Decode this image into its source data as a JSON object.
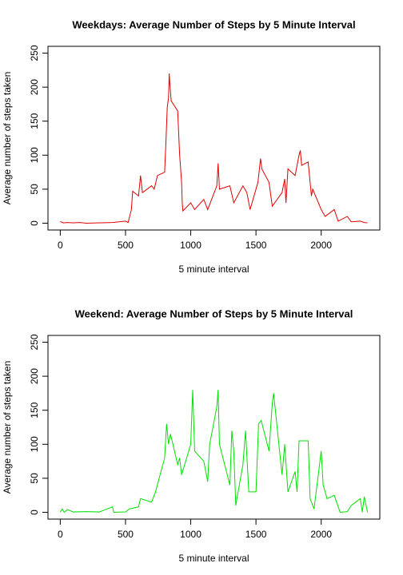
{
  "chart_data": [
    {
      "type": "line",
      "title": "Weekdays: Average Number of Steps by 5 Minute Interval",
      "x_label": "5 minute interval",
      "y_label": "Average number of steps taken",
      "color": "#e00000",
      "x": [
        0,
        25,
        50,
        100,
        150,
        200,
        300,
        400,
        450,
        500,
        520,
        545,
        555,
        600,
        615,
        630,
        700,
        720,
        745,
        800,
        810,
        820,
        830,
        835,
        840,
        850,
        900,
        915,
        930,
        935,
        940,
        1000,
        1030,
        1100,
        1130,
        1200,
        1210,
        1220,
        1300,
        1330,
        1400,
        1430,
        1455,
        1515,
        1535,
        1545,
        1600,
        1625,
        1700,
        1720,
        1730,
        1745,
        1800,
        1830,
        1840,
        1850,
        1900,
        1925,
        1935,
        2000,
        2030,
        2100,
        2130,
        2200,
        2230,
        2300,
        2330,
        2355
      ],
      "values": [
        2.3,
        0.5,
        1,
        0.5,
        1,
        0,
        0.5,
        1,
        2,
        3,
        1,
        20,
        47,
        40,
        70,
        45,
        55,
        50,
        70,
        75,
        120,
        170,
        185,
        220,
        205,
        180,
        165,
        100,
        60,
        30,
        18,
        30,
        20,
        35,
        20,
        55,
        88,
        50,
        55,
        30,
        55,
        45,
        20,
        60,
        95,
        80,
        60,
        25,
        45,
        65,
        30,
        80,
        70,
        100,
        107,
        85,
        90,
        40,
        50,
        20,
        10,
        20,
        3,
        10,
        2,
        3,
        1,
        0.5
      ],
      "xlim": [
        -94.2,
        2449.2
      ],
      "ylim": [
        -10,
        260
      ],
      "xticks": [
        0,
        500,
        1000,
        1500,
        2000
      ],
      "yticks": [
        0,
        50,
        100,
        150,
        200,
        250
      ]
    },
    {
      "type": "line",
      "title": "Weekend: Average Number of Steps by 5 Minute Interval",
      "x_label": "5 minute interval",
      "y_label": "Average number of steps taken",
      "color": "#00e000",
      "x": [
        0,
        15,
        30,
        55,
        100,
        200,
        300,
        400,
        410,
        500,
        530,
        600,
        615,
        700,
        730,
        800,
        815,
        830,
        845,
        900,
        915,
        930,
        1000,
        1015,
        1030,
        1100,
        1130,
        1145,
        1200,
        1210,
        1220,
        1300,
        1315,
        1330,
        1345,
        1400,
        1420,
        1445,
        1500,
        1520,
        1540,
        1600,
        1625,
        1635,
        1700,
        1720,
        1745,
        1800,
        1815,
        1830,
        1900,
        1915,
        1945,
        2000,
        2015,
        2045,
        2100,
        2145,
        2200,
        2230,
        2300,
        2315,
        2330,
        2355
      ],
      "values": [
        0.2,
        5,
        0,
        4,
        0.5,
        1,
        0.5,
        8,
        0,
        0.5,
        5,
        8,
        20,
        15,
        30,
        80,
        130,
        100,
        115,
        70,
        80,
        55,
        100,
        180,
        90,
        75,
        45,
        100,
        155,
        180,
        100,
        40,
        120,
        90,
        10,
        70,
        120,
        30,
        30,
        130,
        135,
        90,
        160,
        175,
        55,
        100,
        30,
        60,
        30,
        105,
        105,
        20,
        5,
        90,
        40,
        20,
        25,
        0,
        1,
        10,
        20,
        0,
        23,
        0
      ],
      "xlim": [
        -94.2,
        2449.2
      ],
      "ylim": [
        -10,
        260
      ],
      "xticks": [
        0,
        500,
        1000,
        1500,
        2000
      ],
      "yticks": [
        0,
        50,
        100,
        150,
        200,
        250
      ]
    }
  ]
}
